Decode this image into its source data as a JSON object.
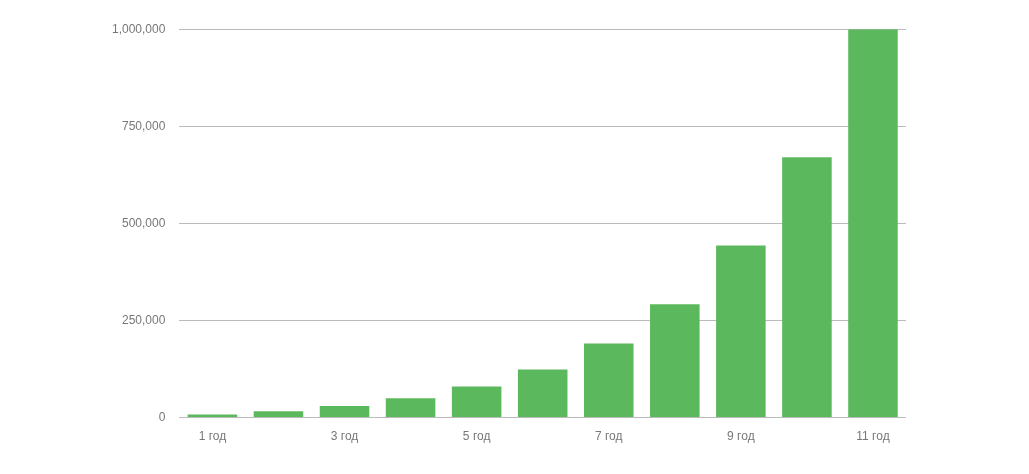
{
  "chart_data": {
    "type": "bar",
    "categories": [
      "1 год",
      null,
      "3 год",
      null,
      "5 год",
      null,
      "7 год",
      null,
      "9 год",
      null,
      "11 год"
    ],
    "values": [
      8000,
      16600,
      30000,
      50000,
      80000,
      124000,
      191000,
      292000,
      443000,
      670000,
      1000000
    ],
    "color": "#5cb85c",
    "ylim": [
      0,
      1000000
    ],
    "yticks": [
      {
        "value": 0,
        "label": "0"
      },
      {
        "value": 250000,
        "label": "250,000"
      },
      {
        "value": 500000,
        "label": "500,000"
      },
      {
        "value": 750000,
        "label": "750,000"
      },
      {
        "value": 1000000,
        "label": "1,000,000"
      }
    ],
    "grid": "y",
    "legend": false
  }
}
